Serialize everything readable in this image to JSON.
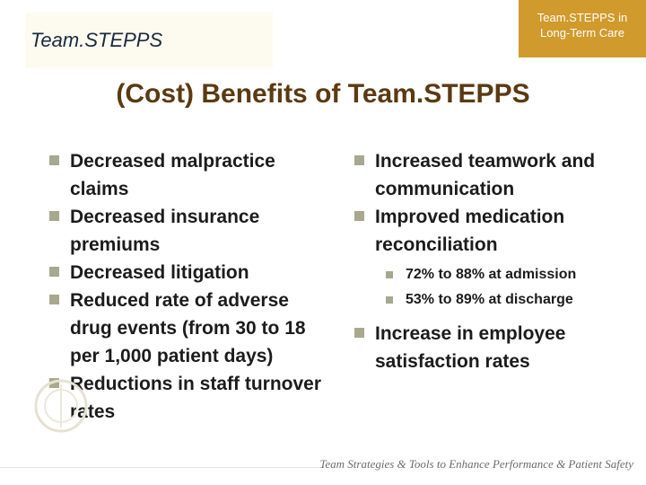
{
  "header": {
    "logo_text": "Team.STEPPS",
    "corner_line1": "Team.STEPPS in",
    "corner_line2": "Long-Term Care"
  },
  "slide": {
    "title": "(Cost) Benefits of Team.STEPPS"
  },
  "left_column": {
    "items": [
      "Decreased malpractice claims",
      "Decreased insurance premiums",
      "Decreased litigation",
      "Reduced rate of adverse drug events (from 30 to 18 per 1,000 patient days)",
      "Reductions in staff turnover rates"
    ]
  },
  "right_column": {
    "items": [
      "Increased teamwork and communication",
      "Improved medication reconciliation"
    ],
    "sub_items": [
      "72% to 88% at admission",
      "53% to 89% at discharge"
    ],
    "last_item": "Increase in employee satisfaction rates"
  },
  "footer": {
    "tagline": "Team Strategies & Tools to Enhance Performance & Patient Safety"
  },
  "colors": {
    "title": "#5b3a12",
    "accent": "#d09a2c",
    "bullet": "#a7a88e"
  }
}
